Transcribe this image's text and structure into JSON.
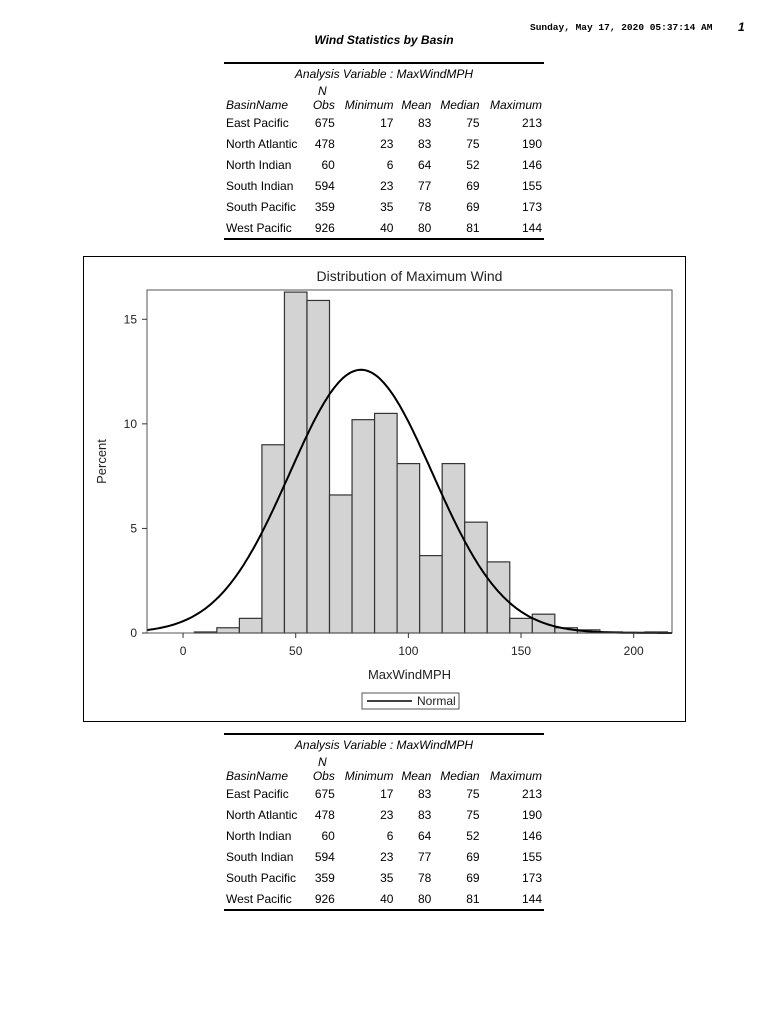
{
  "header": {
    "datetime": "Sunday, May 17, 2020 05:37:14 AM",
    "page": "1",
    "title": "Wind Statistics by Basin"
  },
  "table": {
    "caption": "Analysis Variable : MaxWindMPH",
    "columns": [
      "BasinName",
      "N Obs",
      "Minimum",
      "Mean",
      "Median",
      "Maximum"
    ],
    "n_top": "N",
    "n_bottom": "Obs",
    "rows": [
      [
        "East Pacific",
        "675",
        "17",
        "83",
        "75",
        "213"
      ],
      [
        "North Atlantic",
        "478",
        "23",
        "83",
        "75",
        "190"
      ],
      [
        "North Indian",
        "60",
        "6",
        "64",
        "52",
        "146"
      ],
      [
        "South Indian",
        "594",
        "23",
        "77",
        "69",
        "155"
      ],
      [
        "South Pacific",
        "359",
        "35",
        "78",
        "69",
        "173"
      ],
      [
        "West Pacific",
        "926",
        "40",
        "80",
        "81",
        "144"
      ]
    ]
  },
  "chart_data": {
    "type": "bar",
    "title": "Distribution of Maximum Wind",
    "xlabel": "MaxWindMPH",
    "ylabel": "Percent",
    "xlim": [
      -16,
      217
    ],
    "ylim": [
      0,
      16.4
    ],
    "xticks": [
      0,
      50,
      100,
      150,
      200
    ],
    "yticks": [
      0,
      5,
      10,
      15
    ],
    "bin_width": 10,
    "bin_midpoints": [
      10,
      20,
      30,
      40,
      50,
      60,
      70,
      80,
      90,
      100,
      110,
      120,
      130,
      140,
      150,
      160,
      170,
      180,
      190,
      200,
      210
    ],
    "values": [
      0.05,
      0.25,
      0.7,
      9.0,
      16.3,
      15.9,
      6.6,
      10.2,
      10.5,
      8.1,
      3.7,
      8.1,
      5.3,
      3.4,
      0.7,
      0.9,
      0.25,
      0.15,
      0.05,
      0.03,
      0.05
    ],
    "normal_curve": {
      "mean": 79,
      "sd": 31.7
    },
    "legend": [
      "Normal"
    ],
    "legend_position": "bottom"
  }
}
